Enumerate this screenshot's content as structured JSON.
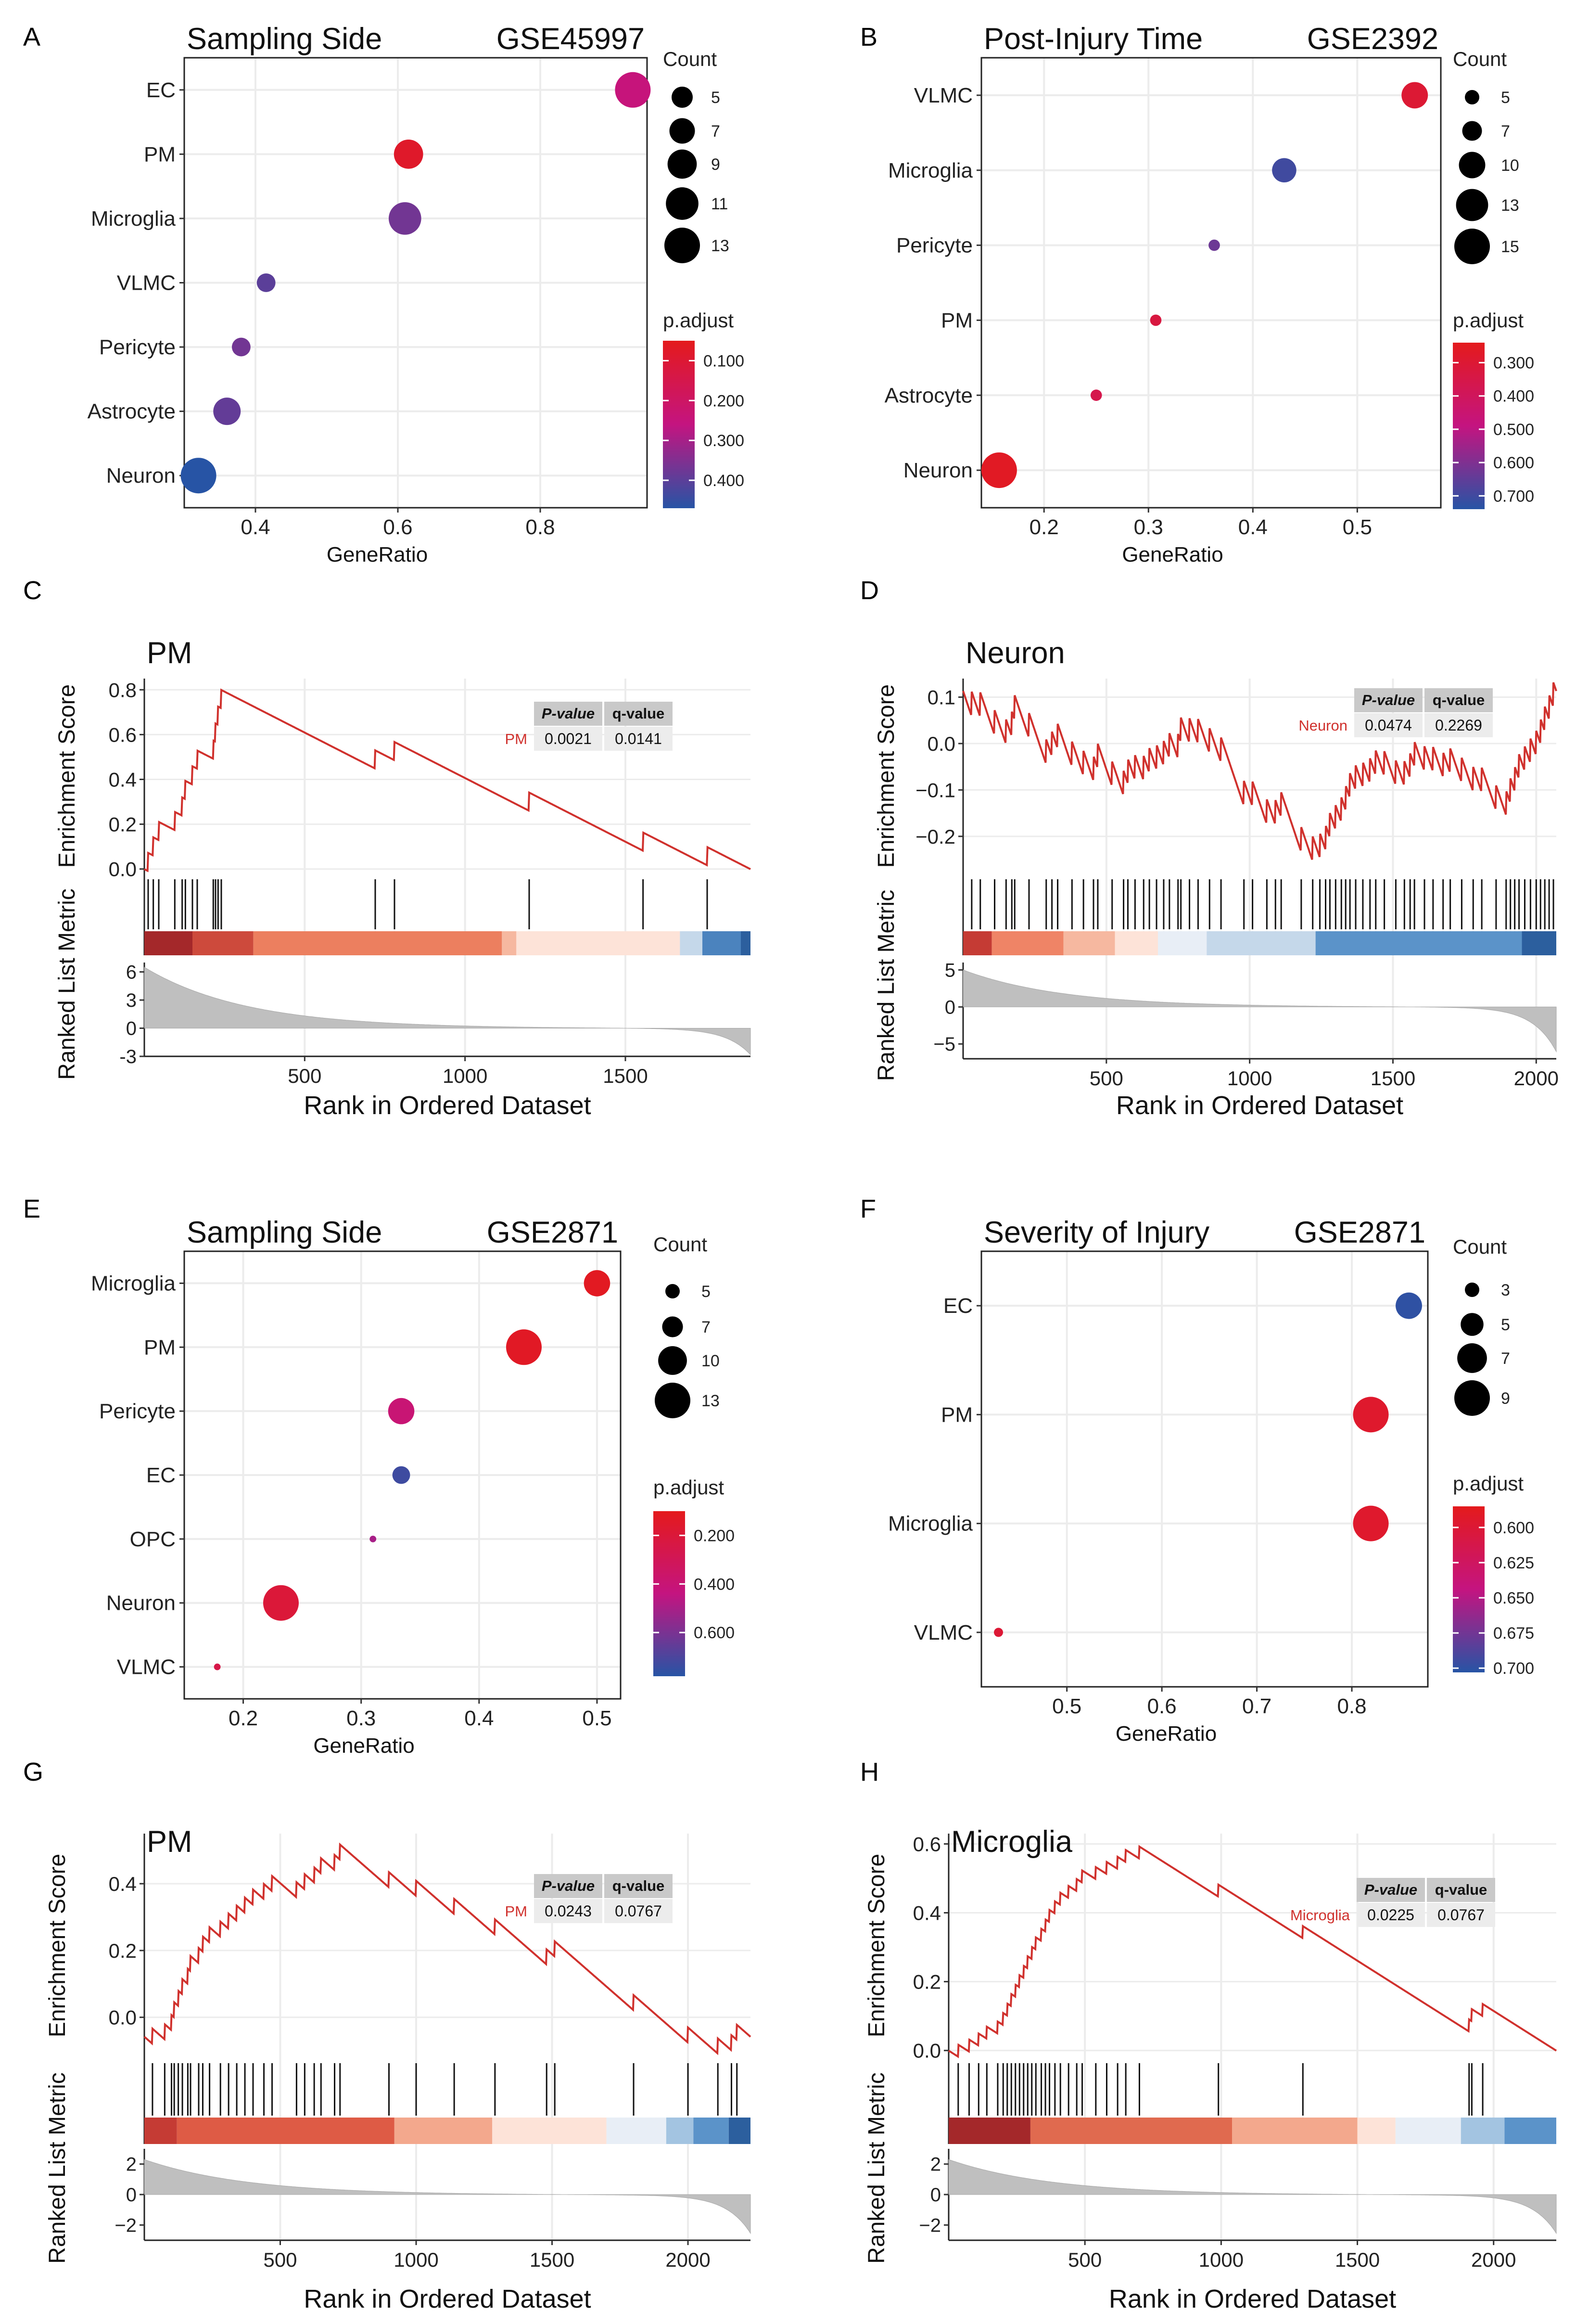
{
  "chart_data": [
    {
      "panel": "A",
      "type": "scatter",
      "title": "Sampling Side",
      "dataset": "GSE45997",
      "xlabel": "GeneRatio",
      "xlim": [
        0.3,
        0.95
      ],
      "xticks": [
        0.4,
        0.6,
        0.8
      ],
      "categories": [
        "EC",
        "PM",
        "Microglia",
        "VLMC",
        "Pericyte",
        "Astrocyte",
        "Neuron"
      ],
      "points": [
        {
          "label": "EC",
          "x": 0.93,
          "count": 13,
          "padj": 0.25
        },
        {
          "label": "PM",
          "x": 0.615,
          "count": 9,
          "padj": 0.08
        },
        {
          "label": "Microglia",
          "x": 0.61,
          "count": 11,
          "padj": 0.37
        },
        {
          "label": "VLMC",
          "x": 0.415,
          "count": 4,
          "padj": 0.4
        },
        {
          "label": "Pericyte",
          "x": 0.38,
          "count": 4,
          "padj": 0.37
        },
        {
          "label": "Astrocyte",
          "x": 0.36,
          "count": 8,
          "padj": 0.39
        },
        {
          "label": "Neuron",
          "x": 0.32,
          "count": 13,
          "padj": 0.49
        }
      ],
      "size_legend": {
        "title": "Count",
        "values": [
          5,
          7,
          9,
          11,
          13
        ],
        "labels": [
          "5",
          "7",
          "9",
          "11",
          "13"
        ]
      },
      "color_legend": {
        "title": "p.adjust",
        "min": 0.05,
        "max": 0.47,
        "ticks": [
          0.1,
          0.2,
          0.3,
          0.4
        ],
        "labels": [
          "0.100",
          "0.200",
          "0.300",
          "0.400"
        ]
      }
    },
    {
      "panel": "B",
      "type": "scatter",
      "title": "Post-Injury Time",
      "dataset": "GSE2392",
      "xlabel": "GeneRatio",
      "xlim": [
        0.14,
        0.58
      ],
      "xticks": [
        0.2,
        0.3,
        0.4,
        0.5
      ],
      "categories": [
        "VLMC",
        "Microglia",
        "Pericyte",
        "PM",
        "Astrocyte",
        "Neuron"
      ],
      "points": [
        {
          "label": "VLMC",
          "x": 0.555,
          "count": 10,
          "padj": 0.3
        },
        {
          "label": "Microglia",
          "x": 0.43,
          "count": 9,
          "padj": 0.7
        },
        {
          "label": "Pericyte",
          "x": 0.363,
          "count": 4,
          "padj": 0.63
        },
        {
          "label": "PM",
          "x": 0.307,
          "count": 4,
          "padj": 0.33
        },
        {
          "label": "Astrocyte",
          "x": 0.25,
          "count": 4,
          "padj": 0.36
        },
        {
          "label": "Neuron",
          "x": 0.157,
          "count": 15,
          "padj": 0.26
        }
      ],
      "size_legend": {
        "title": "Count",
        "values": [
          5,
          7,
          10,
          13,
          15
        ],
        "labels": [
          "5",
          "7",
          "10",
          "13",
          "15"
        ]
      },
      "color_legend": {
        "title": "p.adjust",
        "min": 0.24,
        "max": 0.74,
        "ticks": [
          0.3,
          0.4,
          0.5,
          0.6,
          0.7
        ],
        "labels": [
          "0.300",
          "0.400",
          "0.500",
          "0.600",
          "0.700"
        ]
      }
    },
    {
      "panel": "C",
      "type": "line",
      "title": "PM",
      "ylabel": "Enrichment Score",
      "ylabel2": "Ranked List Metric",
      "xlabel": "Rank in Ordered Dataset",
      "xlim": [
        0,
        1890
      ],
      "xticks": [
        500,
        1000,
        1500
      ],
      "ylim": [
        -0.02,
        0.85
      ],
      "yticks": [
        0.0,
        0.2,
        0.4,
        0.6,
        0.8
      ],
      "metric_ylim": [
        -3,
        7
      ],
      "metric_yticks": [
        6,
        3,
        0,
        -3
      ],
      "metric_start": 6.5,
      "metric_end": -2.8,
      "table": {
        "headers": [
          "P-value",
          "q-value"
        ],
        "term": "PM",
        "pvalue": "0.0021",
        "qvalue": "0.0141"
      },
      "hits": [
        12,
        28,
        45,
        95,
        118,
        128,
        150,
        165,
        215,
        222,
        230,
        240,
        720,
        780,
        1200,
        1555,
        1755
      ],
      "bar_segments": [
        {
          "start": 0,
          "end": 150,
          "color": "#a4282a"
        },
        {
          "start": 150,
          "end": 340,
          "color": "#cd4a3c"
        },
        {
          "start": 340,
          "end": 1115,
          "color": "#ec7f5f"
        },
        {
          "start": 1115,
          "end": 1160,
          "color": "#f6b8a0"
        },
        {
          "start": 1160,
          "end": 1670,
          "color": "#fde3d8"
        },
        {
          "start": 1670,
          "end": 1740,
          "color": "#c5d8ea"
        },
        {
          "start": 1740,
          "end": 1860,
          "color": "#4b83be"
        },
        {
          "start": 1860,
          "end": 1890,
          "color": "#2c5f9e"
        }
      ]
    },
    {
      "panel": "D",
      "type": "line",
      "title": "Neuron",
      "ylabel": "Enrichment Score",
      "ylabel2": "Ranked List Metric",
      "xlabel": "Rank in Ordered Dataset",
      "xlim": [
        0,
        2070
      ],
      "xticks": [
        500,
        1000,
        1500,
        2000
      ],
      "ylim": [
        -0.28,
        0.14
      ],
      "yticks": [
        0.1,
        0.0,
        -0.1,
        -0.2
      ],
      "ytick_labels": [
        "0.1",
        "0.0",
        "−0.1",
        "−0.2"
      ],
      "metric_ylim": [
        -7,
        6
      ],
      "metric_yticks": [
        5,
        0,
        -5
      ],
      "metric_ytick_labels": [
        "5",
        "0",
        "−5"
      ],
      "metric_start": 5,
      "metric_end": -6,
      "table": {
        "headers": [
          "P-value",
          "q-value"
        ],
        "term": "Neuron",
        "pvalue": "0.0474",
        "qvalue": "0.2269"
      },
      "hits": [
        30,
        60,
        110,
        150,
        170,
        180,
        230,
        290,
        310,
        330,
        380,
        420,
        455,
        470,
        520,
        560,
        575,
        600,
        630,
        650,
        675,
        700,
        720,
        750,
        760,
        790,
        820,
        860,
        900,
        980,
        1010,
        1060,
        1090,
        1110,
        1180,
        1220,
        1245,
        1265,
        1280,
        1300,
        1320,
        1335,
        1350,
        1370,
        1395,
        1420,
        1440,
        1470,
        1510,
        1540,
        1560,
        1575,
        1610,
        1640,
        1675,
        1700,
        1740,
        1780,
        1810,
        1860,
        1895,
        1910,
        1925,
        1940,
        1960,
        1980,
        2000,
        2015,
        2030,
        2045,
        2060
      ],
      "bar_segments": [
        {
          "start": 0,
          "end": 100,
          "color": "#c53b34"
        },
        {
          "start": 100,
          "end": 350,
          "color": "#ef8466"
        },
        {
          "start": 350,
          "end": 530,
          "color": "#f6b8a0"
        },
        {
          "start": 530,
          "end": 680,
          "color": "#fde3d8"
        },
        {
          "start": 680,
          "end": 850,
          "color": "#e8eef6"
        },
        {
          "start": 850,
          "end": 1230,
          "color": "#c5d8ea"
        },
        {
          "start": 1230,
          "end": 1950,
          "color": "#5b93c9"
        },
        {
          "start": 1950,
          "end": 2070,
          "color": "#2c5f9e"
        }
      ]
    },
    {
      "panel": "E",
      "type": "scatter",
      "title": "Sampling Side",
      "dataset": "GSE2871",
      "xlabel": "GeneRatio",
      "xlim": [
        0.15,
        0.52
      ],
      "xticks": [
        0.2,
        0.3,
        0.4,
        0.5
      ],
      "categories": [
        "Microglia",
        "PM",
        "Pericyte",
        "EC",
        "OPC",
        "Neuron",
        "VLMC"
      ],
      "points": [
        {
          "label": "Microglia",
          "x": 0.5,
          "count": 9,
          "padj": 0.12
        },
        {
          "label": "PM",
          "x": 0.438,
          "count": 13,
          "padj": 0.13
        },
        {
          "label": "Pericyte",
          "x": 0.334,
          "count": 9,
          "padj": 0.4
        },
        {
          "label": "EC",
          "x": 0.334,
          "count": 6,
          "padj": 0.73
        },
        {
          "label": "OPC",
          "x": 0.31,
          "count": 3,
          "padj": 0.5
        },
        {
          "label": "Neuron",
          "x": 0.232,
          "count": 13,
          "padj": 0.2
        },
        {
          "label": "VLMC",
          "x": 0.178,
          "count": 3,
          "padj": 0.25
        }
      ],
      "size_legend": {
        "title": "Count",
        "values": [
          5,
          7,
          10,
          13
        ],
        "labels": [
          "5",
          "7",
          "10",
          "13"
        ]
      },
      "color_legend": {
        "title": "p.adjust",
        "min": 0.1,
        "max": 0.78,
        "ticks": [
          0.2,
          0.4,
          0.6
        ],
        "labels": [
          "0.200",
          "0.400",
          "0.600"
        ]
      }
    },
    {
      "panel": "F",
      "type": "scatter",
      "title": "Severity of Injury",
      "dataset": "GSE2871",
      "xlabel": "GeneRatio",
      "xlim": [
        0.41,
        0.88
      ],
      "xticks": [
        0.5,
        0.6,
        0.7,
        0.8
      ],
      "categories": [
        "EC",
        "PM",
        "Microglia",
        "VLMC"
      ],
      "points": [
        {
          "label": "EC",
          "x": 0.86,
          "count": 6,
          "padj": 0.7
        },
        {
          "label": "PM",
          "x": 0.82,
          "count": 9,
          "padj": 0.595
        },
        {
          "label": "Microglia",
          "x": 0.82,
          "count": 9,
          "padj": 0.595
        },
        {
          "label": "VLMC",
          "x": 0.428,
          "count": 2,
          "padj": 0.6
        }
      ],
      "size_legend": {
        "title": "Count",
        "values": [
          3,
          5,
          7,
          9
        ],
        "labels": [
          "3",
          "5",
          "7",
          "9"
        ]
      },
      "color_legend": {
        "title": "p.adjust",
        "min": 0.585,
        "max": 0.703,
        "ticks": [
          0.6,
          0.625,
          0.65,
          0.675,
          0.7
        ],
        "labels": [
          "0.600",
          "0.625",
          "0.650",
          "0.675",
          "0.700"
        ]
      }
    },
    {
      "panel": "G",
      "type": "line",
      "title": "PM",
      "ylabel": "Enrichment Score",
      "ylabel2": "Ranked List Metric",
      "xlabel": "Rank in Ordered Dataset",
      "xlim": [
        0,
        2230
      ],
      "xticks": [
        500,
        1000,
        1500,
        2000
      ],
      "ylim": [
        -0.12,
        0.55
      ],
      "yticks": [
        0.0,
        0.2,
        0.4
      ],
      "metric_ylim": [
        -3,
        3
      ],
      "metric_yticks": [
        2,
        0,
        -2
      ],
      "metric_ytick_labels": [
        "2",
        "0",
        "−2"
      ],
      "metric_start": 2.3,
      "metric_end": -2.5,
      "table": {
        "headers": [
          "P-value",
          "q-value"
        ],
        "term": "PM",
        "pvalue": "0.0243",
        "qvalue": "0.0767"
      },
      "hits": [
        30,
        75,
        100,
        110,
        125,
        140,
        160,
        170,
        200,
        215,
        240,
        280,
        310,
        340,
        370,
        400,
        440,
        470,
        560,
        590,
        625,
        650,
        700,
        720,
        900,
        1000,
        1140,
        1290,
        1480,
        1510,
        1800,
        2000,
        2110,
        2160,
        2180
      ],
      "bar_segments": [
        {
          "start": 0,
          "end": 120,
          "color": "#c53b34"
        },
        {
          "start": 120,
          "end": 920,
          "color": "#de5b45"
        },
        {
          "start": 920,
          "end": 1280,
          "color": "#f3a88d"
        },
        {
          "start": 1280,
          "end": 1700,
          "color": "#fde3d8"
        },
        {
          "start": 1700,
          "end": 1920,
          "color": "#e8eef6"
        },
        {
          "start": 1920,
          "end": 2020,
          "color": "#a3c4e1"
        },
        {
          "start": 2020,
          "end": 2150,
          "color": "#5b93c9"
        },
        {
          "start": 2150,
          "end": 2230,
          "color": "#2c5f9e"
        }
      ]
    },
    {
      "panel": "H",
      "type": "line",
      "title": "Microglia",
      "ylabel": "Enrichment Score",
      "ylabel2": "Ranked List Metric",
      "xlabel": "Rank in Ordered Dataset",
      "xlim": [
        0,
        2230
      ],
      "xticks": [
        500,
        1000,
        1500,
        2000
      ],
      "ylim": [
        -0.02,
        0.63
      ],
      "yticks": [
        0.0,
        0.2,
        0.4,
        0.6
      ],
      "metric_ylim": [
        -3,
        3
      ],
      "metric_yticks": [
        2,
        0,
        -2
      ],
      "metric_ytick_labels": [
        "2",
        "0",
        "−2"
      ],
      "metric_start": 2.3,
      "metric_end": -2.5,
      "table": {
        "headers": [
          "P-value",
          "q-value"
        ],
        "term": "Microglia",
        "pvalue": "0.0225",
        "qvalue": "0.0767"
      },
      "hits": [
        35,
        75,
        110,
        140,
        180,
        200,
        215,
        230,
        245,
        260,
        275,
        290,
        305,
        320,
        340,
        355,
        370,
        390,
        410,
        440,
        470,
        490,
        540,
        580,
        620,
        650,
        700,
        990,
        1300,
        1910,
        1920,
        1960
      ],
      "bar_segments": [
        {
          "start": 0,
          "end": 300,
          "color": "#a4282a"
        },
        {
          "start": 300,
          "end": 1040,
          "color": "#e06a4f"
        },
        {
          "start": 1040,
          "end": 1500,
          "color": "#f3a88d"
        },
        {
          "start": 1500,
          "end": 1640,
          "color": "#fde3d8"
        },
        {
          "start": 1640,
          "end": 1880,
          "color": "#e8eef6"
        },
        {
          "start": 1880,
          "end": 2040,
          "color": "#a3c4e1"
        },
        {
          "start": 2040,
          "end": 2230,
          "color": "#5b93c9"
        }
      ]
    }
  ],
  "panel_letters": [
    "A",
    "B",
    "C",
    "D",
    "E",
    "F",
    "G",
    "H"
  ],
  "colors": {
    "high": "#e41a1c",
    "mid": "#c41480",
    "low": "#2754a5",
    "es_line": "#d0312d",
    "metric_fill": "#bfbfbf",
    "table_header": "#c9c9c9",
    "table_cell": "#ececec"
  }
}
